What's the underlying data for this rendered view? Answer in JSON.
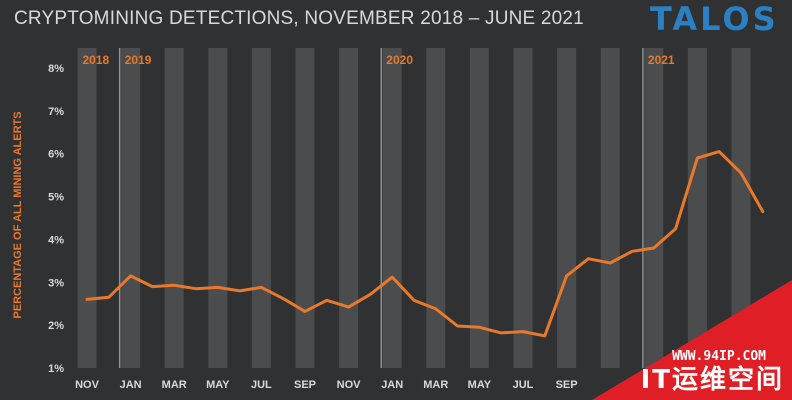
{
  "header": {
    "title": "CRYPTOMINING DETECTIONS, NOVEMBER 2018 – JUNE 2021",
    "logo": "TALOS"
  },
  "watermark": {
    "url": "WWW.94IP.COM",
    "text": "IT运维空间"
  },
  "chart_data": {
    "type": "line",
    "title": "CRYPTOMINING DETECTIONS, NOVEMBER 2018 – JUNE 2021",
    "xlabel": "",
    "ylabel": "PERCENTAGE OF ALL MINING ALERTS",
    "ylim": [
      1,
      8
    ],
    "yticks": [
      "1%",
      "2%",
      "3%",
      "4%",
      "5%",
      "6%",
      "7%",
      "8%"
    ],
    "year_labels": [
      "2018",
      "2019",
      "2020",
      "2021"
    ],
    "x": [
      "2018-11",
      "2018-12",
      "2019-01",
      "2019-02",
      "2019-03",
      "2019-04",
      "2019-05",
      "2019-06",
      "2019-07",
      "2019-08",
      "2019-09",
      "2019-10",
      "2019-11",
      "2019-12",
      "2020-01",
      "2020-02",
      "2020-03",
      "2020-04",
      "2020-05",
      "2020-06",
      "2020-07",
      "2020-08",
      "2020-09",
      "2020-10",
      "2020-11",
      "2020-12",
      "2021-01",
      "2021-02",
      "2021-03",
      "2021-04",
      "2021-05",
      "2021-06"
    ],
    "xtick_labels": [
      "NOV",
      "JAN",
      "MAR",
      "MAY",
      "JUL",
      "SEP",
      "NOV",
      "JAN",
      "MAR",
      "MAY",
      "JUL",
      "SEP"
    ],
    "series": [
      {
        "values": [
          2.6,
          2.65,
          3.15,
          2.9,
          2.93,
          2.85,
          2.88,
          2.8,
          2.88,
          2.62,
          2.32,
          2.58,
          2.42,
          2.72,
          3.12,
          2.58,
          2.38,
          1.98,
          1.95,
          1.82,
          1.85,
          1.75,
          3.15,
          3.55,
          3.45,
          3.72,
          3.8,
          4.25,
          5.9,
          6.05,
          5.55,
          4.65
        ],
        "color": "#e8792b"
      }
    ],
    "grid": false,
    "colors": {
      "background": "#2f3133",
      "band": "#4a4c4e",
      "text": "#d9d9d9",
      "accent": "#e8792b"
    }
  }
}
